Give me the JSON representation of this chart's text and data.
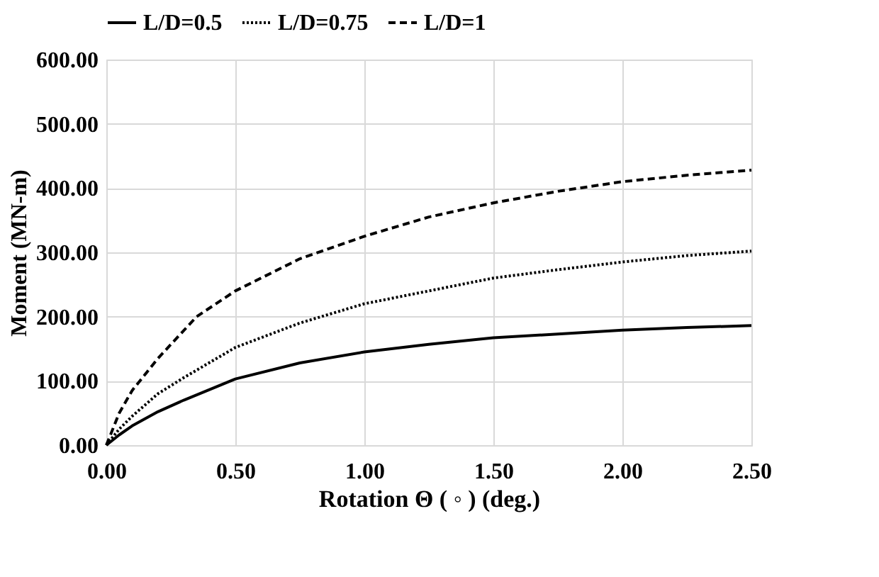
{
  "chart_data": {
    "type": "line",
    "xlabel": "Rotation Θ ( ◦ ) (deg.)",
    "ylabel": "Moment (MN-m)",
    "xlim": [
      0,
      2.5
    ],
    "xticks": [
      {
        "value": 0,
        "label": "0.00"
      },
      {
        "value": 0.5,
        "label": "0.50"
      },
      {
        "value": 1,
        "label": "1.00"
      },
      {
        "value": 1.5,
        "label": "1.50"
      },
      {
        "value": 2,
        "label": "2.00"
      },
      {
        "value": 2.5,
        "label": "2.50"
      }
    ],
    "ylim": [
      0,
      600
    ],
    "yticks": [
      {
        "value": 0,
        "label": "0.00"
      },
      {
        "value": 100,
        "label": "100.00"
      },
      {
        "value": 200,
        "label": "200.00"
      },
      {
        "value": 300,
        "label": "300.00"
      },
      {
        "value": 400,
        "label": "400.00"
      },
      {
        "value": 500,
        "label": "500.00"
      },
      {
        "value": 600,
        "label": "600.00"
      }
    ],
    "grid": true,
    "legend": "top",
    "marker": "none",
    "series": [
      {
        "name": "L/D=0.5",
        "color": "#000000",
        "line_style": "solid",
        "x": [
          0,
          0.05,
          0.1,
          0.2,
          0.3,
          0.5,
          0.75,
          1.0,
          1.25,
          1.5,
          1.75,
          2.0,
          2.25,
          2.5
        ],
        "values": [
          0,
          16,
          30,
          52,
          70,
          103,
          128,
          145,
          157,
          167,
          173,
          179,
          183,
          186
        ]
      },
      {
        "name": "L/D=0.75",
        "color": "#000000",
        "line_style": "dotted",
        "x": [
          0,
          0.05,
          0.1,
          0.2,
          0.3,
          0.5,
          0.75,
          1.0,
          1.25,
          1.5,
          1.75,
          2.0,
          2.25,
          2.5
        ],
        "values": [
          0,
          25,
          45,
          80,
          105,
          152,
          190,
          220,
          240,
          260,
          273,
          285,
          295,
          302
        ]
      },
      {
        "name": "L/D=1",
        "color": "#000000",
        "line_style": "dashed",
        "x": [
          0,
          0.05,
          0.1,
          0.2,
          0.35,
          0.5,
          0.75,
          1.0,
          1.25,
          1.5,
          1.75,
          2.0,
          2.25,
          2.5
        ],
        "values": [
          0,
          50,
          85,
          135,
          200,
          240,
          290,
          325,
          355,
          377,
          395,
          410,
          420,
          428
        ]
      }
    ]
  }
}
